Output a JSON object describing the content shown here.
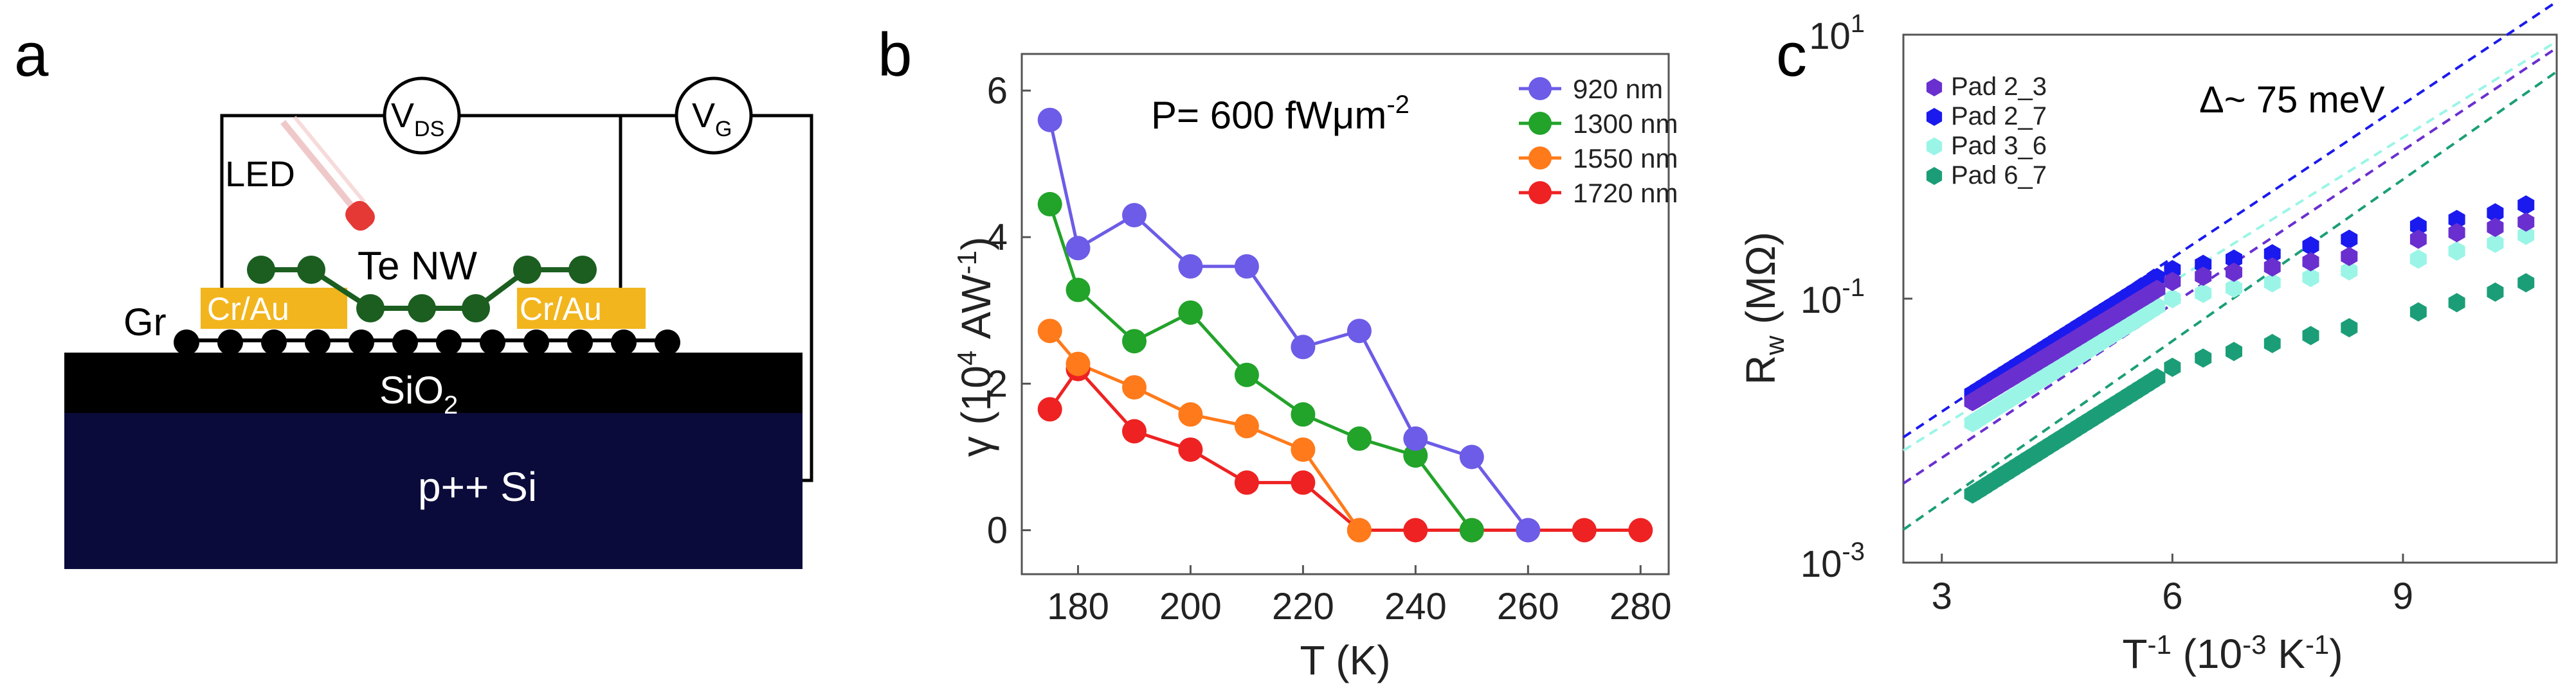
{
  "panel_a": {
    "label": "a",
    "vds": "V",
    "vds_sub": "DS",
    "vg": "V",
    "vg_sub": "G",
    "led": "LED",
    "te_nw": "Te NW",
    "gr": "Gr",
    "contact_left": "Cr/Au",
    "contact_right": "Cr/Au",
    "sio2": "SiO",
    "sio2_sub": "2",
    "substrate": "p++ Si",
    "colors": {
      "contact": "#f2b51d",
      "nanowire": "#1b5e20",
      "oxide": "#000000",
      "substrate": "#0b0b3b",
      "led": "#e53935"
    }
  },
  "chart_data": [
    {
      "type": "line",
      "panel": "b",
      "annotation": "P= 600 fWμm",
      "annotation_sup": "-2",
      "xlabel": "T (K)",
      "ylabel": "γ (10",
      "ylabel_sup": "4",
      "ylabel_tail": " AW",
      "ylabel_sup2": "-1",
      "ylabel_end": ")",
      "xlim": [
        170,
        285
      ],
      "ylim": [
        -0.6,
        6.5
      ],
      "xticks": [
        180,
        200,
        220,
        240,
        260,
        280
      ],
      "yticks": [
        0,
        2,
        4,
        6
      ],
      "xtick_labels": [
        "180",
        "200",
        "220",
        "240",
        "260",
        "280"
      ],
      "ytick_labels": [
        "0",
        "2",
        "4",
        "6"
      ],
      "series": [
        {
          "name": "920 nm",
          "color": "#6c5ce7",
          "x": [
            175,
            180,
            190,
            200,
            210,
            220,
            230,
            240,
            250,
            260
          ],
          "values": [
            5.6,
            3.85,
            4.3,
            3.6,
            3.6,
            2.5,
            2.72,
            1.25,
            1.0,
            0
          ]
        },
        {
          "name": "1300 nm",
          "color": "#22a32a",
          "x": [
            175,
            180,
            190,
            200,
            210,
            220,
            230,
            240,
            250
          ],
          "values": [
            4.45,
            3.28,
            2.58,
            2.97,
            2.12,
            1.58,
            1.25,
            1.02,
            0
          ]
        },
        {
          "name": "1550 nm",
          "color": "#ff7a1a",
          "x": [
            175,
            180,
            190,
            200,
            210,
            220,
            230
          ],
          "values": [
            2.72,
            2.27,
            1.95,
            1.58,
            1.42,
            1.1,
            0
          ]
        },
        {
          "name": "1720 nm",
          "color": "#ee2222",
          "x": [
            175,
            180,
            190,
            200,
            210,
            220,
            230,
            240,
            250,
            260,
            270,
            280
          ],
          "values": [
            1.65,
            2.2,
            1.35,
            1.1,
            0.65,
            0.65,
            0,
            0,
            0,
            0,
            0,
            0
          ]
        }
      ]
    },
    {
      "type": "scatter",
      "panel": "c",
      "annotation": "Δ~ 75 meV",
      "xlabel": "T",
      "xlabel_sup": "-1",
      "xlabel_tail": " (10",
      "xlabel_sup2": "-3",
      "xlabel_tail2": " K",
      "xlabel_sup3": "-1",
      "xlabel_end": ")",
      "ylabel": "R",
      "ylabel_sub": "w",
      "ylabel_tail": " (MΩ)",
      "xlim": [
        2.5,
        11.0
      ],
      "ylim_log10": [
        -3,
        1
      ],
      "xticks": [
        3,
        6,
        9
      ],
      "xtick_labels": [
        "3",
        "6",
        "9"
      ],
      "yticks_log10": [
        -3,
        -1,
        1
      ],
      "ytick_labels": [
        "10",
        "10",
        "10"
      ],
      "ytick_exps": [
        "-3",
        "-1",
        "1"
      ],
      "series": [
        {
          "name": "Pad 2_3",
          "color": "#6a2fcf",
          "marker": "hexagon",
          "dense_x_range": [
            3.4,
            5.8
          ],
          "log10_at_3p4": -1.78,
          "log10_at_5p8": -0.93,
          "sparse_x": [
            6.0,
            6.4,
            6.8,
            7.3,
            7.8,
            8.3,
            9.2,
            9.7,
            10.2,
            10.6
          ],
          "sparse_log10": [
            -0.87,
            -0.83,
            -0.8,
            -0.76,
            -0.72,
            -0.68,
            -0.55,
            -0.5,
            -0.46,
            -0.42
          ],
          "fit": {
            "x": [
              2.5,
              11.0
            ],
            "log10": [
              -2.4,
              0.9
            ]
          }
        },
        {
          "name": "Pad 2_7",
          "color": "#1a1aee",
          "marker": "hexagon",
          "dense_x_range": [
            3.4,
            5.8
          ],
          "log10_at_3p4": -1.72,
          "log10_at_5p8": -0.84,
          "sparse_x": [
            6.0,
            6.4,
            6.8,
            7.3,
            7.8,
            8.3,
            9.2,
            9.7,
            10.2,
            10.6
          ],
          "sparse_log10": [
            -0.78,
            -0.74,
            -0.7,
            -0.66,
            -0.6,
            -0.55,
            -0.45,
            -0.4,
            -0.35,
            -0.29
          ],
          "fit": {
            "x": [
              2.5,
              11.0
            ],
            "log10": [
              -2.05,
              1.25
            ]
          }
        },
        {
          "name": "Pad 3_6",
          "color": "#9af5e6",
          "marker": "hexagon",
          "dense_x_range": [
            3.4,
            5.8
          ],
          "log10_at_3p4": -1.94,
          "log10_at_5p8": -1.06,
          "sparse_x": [
            6.0,
            6.4,
            6.8,
            7.3,
            7.8,
            8.3,
            9.2,
            9.7,
            10.2,
            10.6
          ],
          "sparse_log10": [
            -1.0,
            -0.96,
            -0.92,
            -0.88,
            -0.84,
            -0.79,
            -0.7,
            -0.64,
            -0.58,
            -0.52
          ],
          "fit": {
            "x": [
              2.5,
              11.0
            ],
            "log10": [
              -2.15,
              0.95
            ]
          }
        },
        {
          "name": "Pad 6_7",
          "color": "#1b9e77",
          "marker": "hexagon",
          "dense_x_range": [
            3.4,
            5.8
          ],
          "log10_at_3p4": -2.48,
          "log10_at_5p8": -1.6,
          "sparse_x": [
            6.0,
            6.4,
            6.8,
            7.3,
            7.8,
            8.3,
            9.2,
            9.7,
            10.2,
            10.6
          ],
          "sparse_log10": [
            -1.52,
            -1.45,
            -1.4,
            -1.34,
            -1.28,
            -1.22,
            -1.1,
            -1.03,
            -0.95,
            -0.88
          ],
          "fit": {
            "x": [
              2.5,
              11.0
            ],
            "log10": [
              -2.75,
              0.72
            ]
          }
        }
      ]
    }
  ]
}
